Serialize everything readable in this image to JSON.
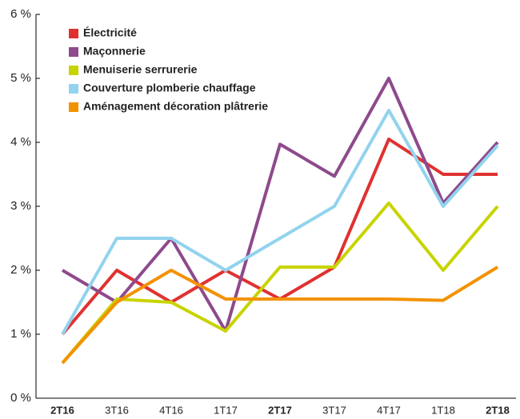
{
  "chart_data": {
    "type": "line",
    "categories": [
      "2T16",
      "3T16",
      "4T16",
      "1T17",
      "2T17",
      "3T17",
      "4T17",
      "1T18",
      "2T18"
    ],
    "series": [
      {
        "name": "Électricité",
        "color": "#e03131",
        "values": [
          1.0,
          2.0,
          1.5,
          2.0,
          1.55,
          2.05,
          4.05,
          3.5,
          3.5
        ]
      },
      {
        "name": "Maçonnerie",
        "color": "#8e4a8c",
        "values": [
          2.0,
          1.5,
          2.5,
          1.05,
          3.97,
          3.47,
          5.0,
          3.05,
          4.0
        ]
      },
      {
        "name": "Menuiserie serrurerie",
        "color": "#c8d400",
        "values": [
          0.55,
          1.55,
          1.5,
          1.05,
          2.05,
          2.05,
          3.05,
          2.0,
          3.0
        ]
      },
      {
        "name": "Couverture plomberie chauffage",
        "color": "#92d3ee",
        "values": [
          1.0,
          2.5,
          2.5,
          2.0,
          2.5,
          3.0,
          4.5,
          3.0,
          3.95
        ]
      },
      {
        "name": "Aménagement décoration plâtrerie",
        "color": "#f39200",
        "values": [
          0.55,
          1.5,
          2.0,
          1.55,
          1.55,
          1.55,
          1.55,
          1.53,
          2.05
        ]
      }
    ],
    "ylim": [
      0,
      6
    ],
    "yticks": [
      {
        "value": 0,
        "label": "0 %"
      },
      {
        "value": 1,
        "label": "1 %"
      },
      {
        "value": 2,
        "label": "2 %"
      },
      {
        "value": 3,
        "label": "3 %"
      },
      {
        "value": 4,
        "label": "4 %"
      },
      {
        "value": 5,
        "label": "5 %"
      },
      {
        "value": 6,
        "label": "6 %"
      }
    ],
    "legend": "upper-left"
  }
}
